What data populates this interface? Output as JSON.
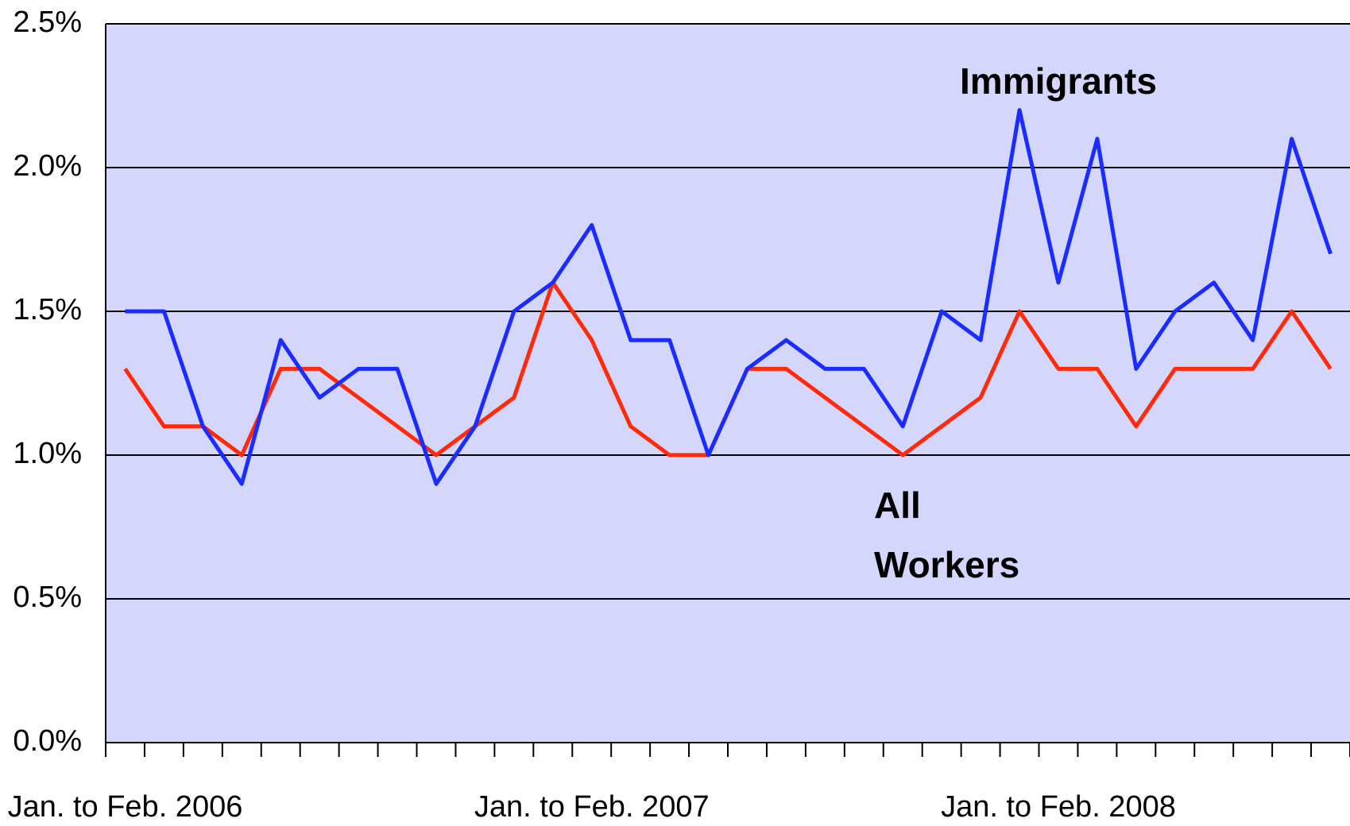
{
  "chart_data": {
    "type": "line",
    "categories": [
      "Jan. to Feb. 2006",
      null,
      null,
      null,
      null,
      null,
      null,
      null,
      null,
      null,
      null,
      null,
      "Jan. to Feb. 2007",
      null,
      null,
      null,
      null,
      null,
      null,
      null,
      null,
      null,
      null,
      null,
      "Jan. to Feb. 2008",
      null,
      null,
      null,
      null,
      null,
      null,
      null
    ],
    "series": [
      {
        "name": "Immigrants",
        "color": "#1a2cff",
        "values": [
          1.5,
          1.5,
          1.1,
          0.9,
          1.4,
          1.2,
          1.3,
          1.3,
          0.9,
          1.1,
          1.5,
          1.6,
          1.8,
          1.4,
          1.4,
          1.0,
          1.3,
          1.4,
          1.3,
          1.3,
          1.1,
          1.5,
          1.4,
          2.2,
          1.6,
          2.1,
          1.3,
          1.5,
          1.6,
          1.4,
          2.1,
          1.7
        ]
      },
      {
        "name": "All Workers",
        "color": "#ff2a0a",
        "values": [
          1.3,
          1.1,
          1.1,
          1.0,
          1.3,
          1.3,
          1.2,
          1.1,
          1.0,
          1.1,
          1.2,
          1.6,
          1.4,
          1.1,
          1.0,
          1.0,
          1.3,
          1.3,
          1.2,
          1.1,
          1.0,
          1.1,
          1.2,
          1.5,
          1.3,
          1.3,
          1.1,
          1.3,
          1.3,
          1.3,
          1.5,
          1.3
        ]
      }
    ],
    "ylim": [
      0,
      2.5
    ],
    "yticks": [
      {
        "value": 0,
        "label": "0.0%"
      },
      {
        "value": 0.5,
        "label": "0.5%"
      },
      {
        "value": 1,
        "label": "1.0%"
      },
      {
        "value": 1.5,
        "label": "1.5%"
      },
      {
        "value": 2,
        "label": "2.0%"
      },
      {
        "value": 2.5,
        "label": "2.5%"
      }
    ],
    "grid": true,
    "background": "#d4d6fb"
  }
}
